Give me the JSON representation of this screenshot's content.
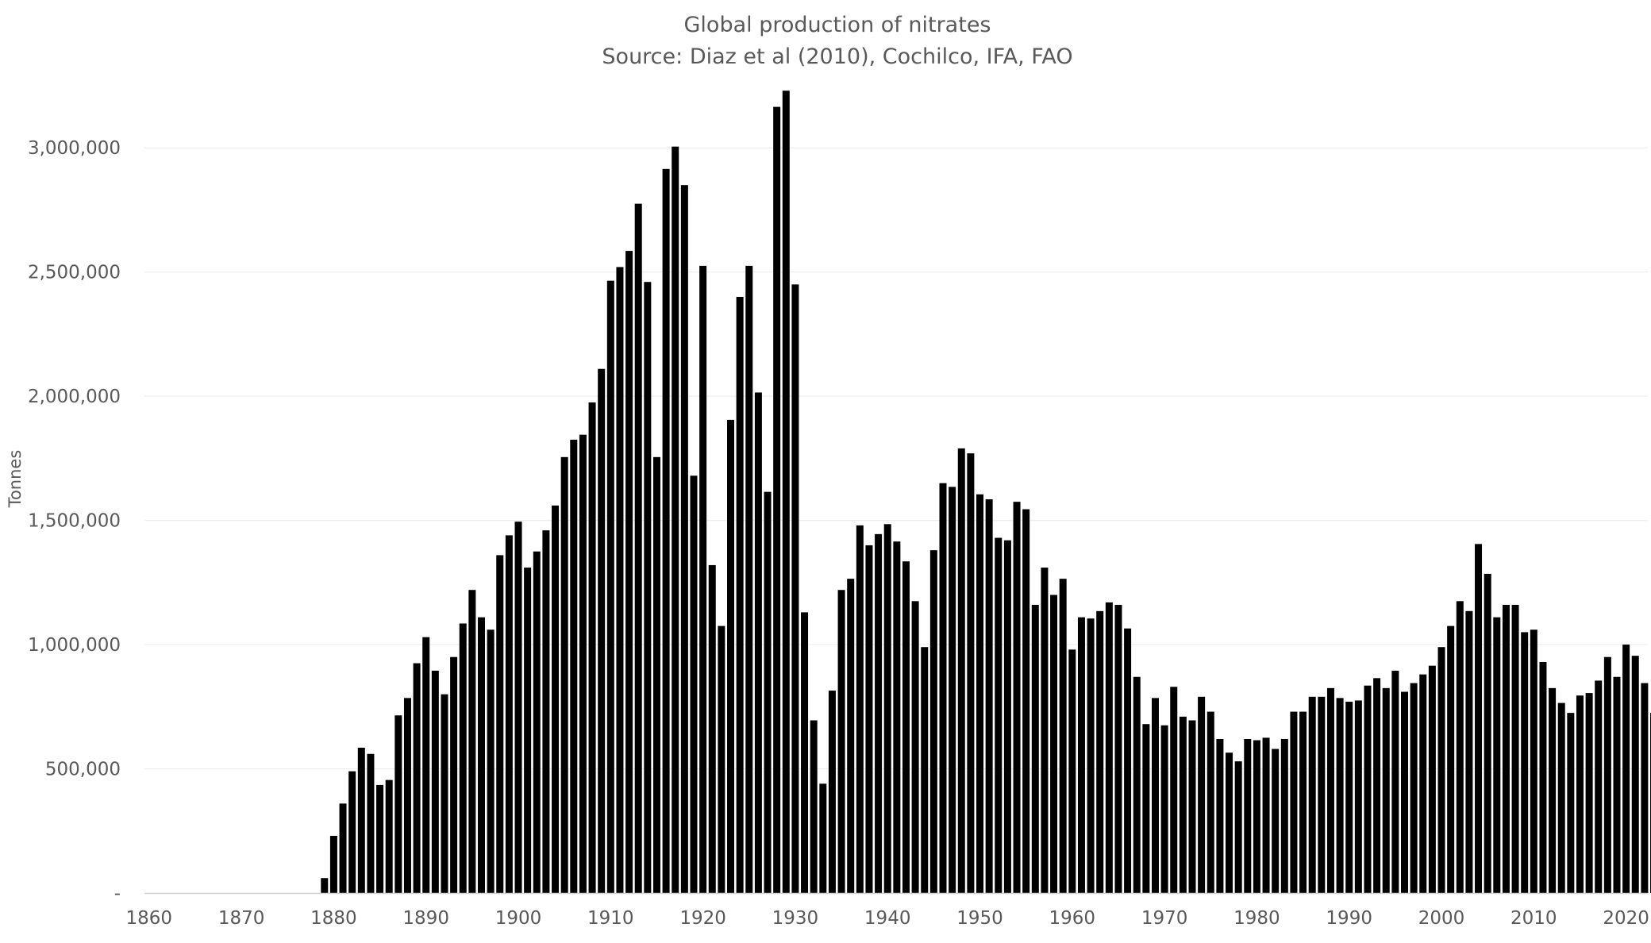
{
  "chart_data": {
    "type": "bar",
    "title": "Global production of nitrates",
    "subtitle": "Source: Diaz et al (2010), Cochilco, IFA, FAO",
    "xlabel": "",
    "ylabel": "Tonnes",
    "ylim": [
      0,
      3250000
    ],
    "yticks": [
      0,
      500000,
      1000000,
      1500000,
      2000000,
      2500000,
      3000000
    ],
    "ytick_labels": [
      "-",
      "500,000",
      "1,000,000",
      "1,500,000",
      "2,000,000",
      "2,500,000",
      "3,000,000"
    ],
    "xticks": [
      1860,
      1870,
      1880,
      1890,
      1900,
      1910,
      1920,
      1930,
      1940,
      1950,
      1960,
      1970,
      1980,
      1990,
      2000,
      2010,
      2020
    ],
    "xtick_labels": [
      "1860",
      "1870",
      "1880",
      "1890",
      "1900",
      "1910",
      "1920",
      "1930",
      "1940",
      "1950",
      "1960",
      "1970",
      "1980",
      "1990",
      "2000",
      "2010",
      "2020"
    ],
    "grid": true,
    "legend": "none",
    "bar_color": "#000000",
    "series": [
      {
        "x": [
          1879,
          1880,
          1881,
          1882,
          1883,
          1884,
          1885,
          1886,
          1887,
          1888,
          1889,
          1890,
          1891,
          1892,
          1893,
          1894,
          1895,
          1896,
          1897,
          1898,
          1899,
          1900,
          1901,
          1902,
          1903,
          1904,
          1905,
          1906,
          1907,
          1908,
          1909,
          1910,
          1911,
          1912,
          1913,
          1914,
          1915,
          1916,
          1917,
          1918,
          1919,
          1920,
          1921,
          1922,
          1923,
          1924,
          1925,
          1926,
          1927,
          1928,
          1929,
          1930,
          1931,
          1932,
          1933,
          1934,
          1935,
          1936,
          1937,
          1938,
          1939,
          1940,
          1941,
          1942,
          1943,
          1944,
          1945,
          1946,
          1947,
          1948,
          1949,
          1950,
          1951,
          1952,
          1953,
          1954,
          1955,
          1956,
          1957,
          1958,
          1959,
          1960,
          1961,
          1962,
          1963,
          1964,
          1965,
          1966,
          1967,
          1968,
          1969,
          1970,
          1971,
          1972,
          1973,
          1974,
          1975,
          1976,
          1977,
          1978,
          1979,
          1980,
          1981,
          1982,
          1983,
          1984,
          1985,
          1986,
          1987,
          1988,
          1989,
          1990,
          1991,
          1992,
          1993,
          1994,
          1995,
          1996,
          1997,
          1998,
          1999,
          2000,
          2001,
          2002,
          2003,
          2004,
          2005,
          2006,
          2007,
          2008,
          2009,
          2010,
          2011,
          2012,
          2013,
          2014,
          2015,
          2016,
          2017,
          2018,
          2019,
          2020,
          2021,
          2022,
          2023
        ],
        "values": [
          60000,
          230000,
          360000,
          490000,
          585000,
          560000,
          435000,
          455000,
          715000,
          785000,
          925000,
          1030000,
          895000,
          800000,
          950000,
          1085000,
          1220000,
          1110000,
          1060000,
          1360000,
          1440000,
          1495000,
          1310000,
          1375000,
          1460000,
          1560000,
          1755000,
          1825000,
          1845000,
          1975000,
          2110000,
          2465000,
          2520000,
          2585000,
          2775000,
          2460000,
          1755000,
          2915000,
          3005000,
          2850000,
          1680000,
          2525000,
          1320000,
          1075000,
          1905000,
          2400000,
          2525000,
          2015000,
          1615000,
          3165000,
          3230000,
          2450000,
          1130000,
          695000,
          440000,
          815000,
          1220000,
          1265000,
          1480000,
          1400000,
          1445000,
          1485000,
          1415000,
          1335000,
          1175000,
          990000,
          1380000,
          1650000,
          1635000,
          1790000,
          1770000,
          1605000,
          1585000,
          1430000,
          1420000,
          1575000,
          1545000,
          1160000,
          1310000,
          1200000,
          1265000,
          980000,
          1110000,
          1105000,
          1135000,
          1170000,
          1160000,
          1065000,
          870000,
          680000,
          785000,
          675000,
          830000,
          710000,
          695000,
          790000,
          730000,
          620000,
          565000,
          530000,
          620000,
          615000,
          625000,
          580000,
          620000,
          730000,
          730000,
          790000,
          790000,
          825000,
          785000,
          770000,
          775000,
          835000,
          865000,
          825000,
          895000,
          810000,
          845000,
          880000,
          915000,
          990000,
          1075000,
          1175000,
          1135000,
          1405000,
          1285000,
          1110000,
          1160000,
          1160000,
          1050000,
          1060000,
          930000,
          825000,
          765000,
          725000,
          795000,
          805000,
          855000,
          950000,
          870000,
          1000000,
          955000,
          845000,
          725000
        ]
      }
    ]
  }
}
